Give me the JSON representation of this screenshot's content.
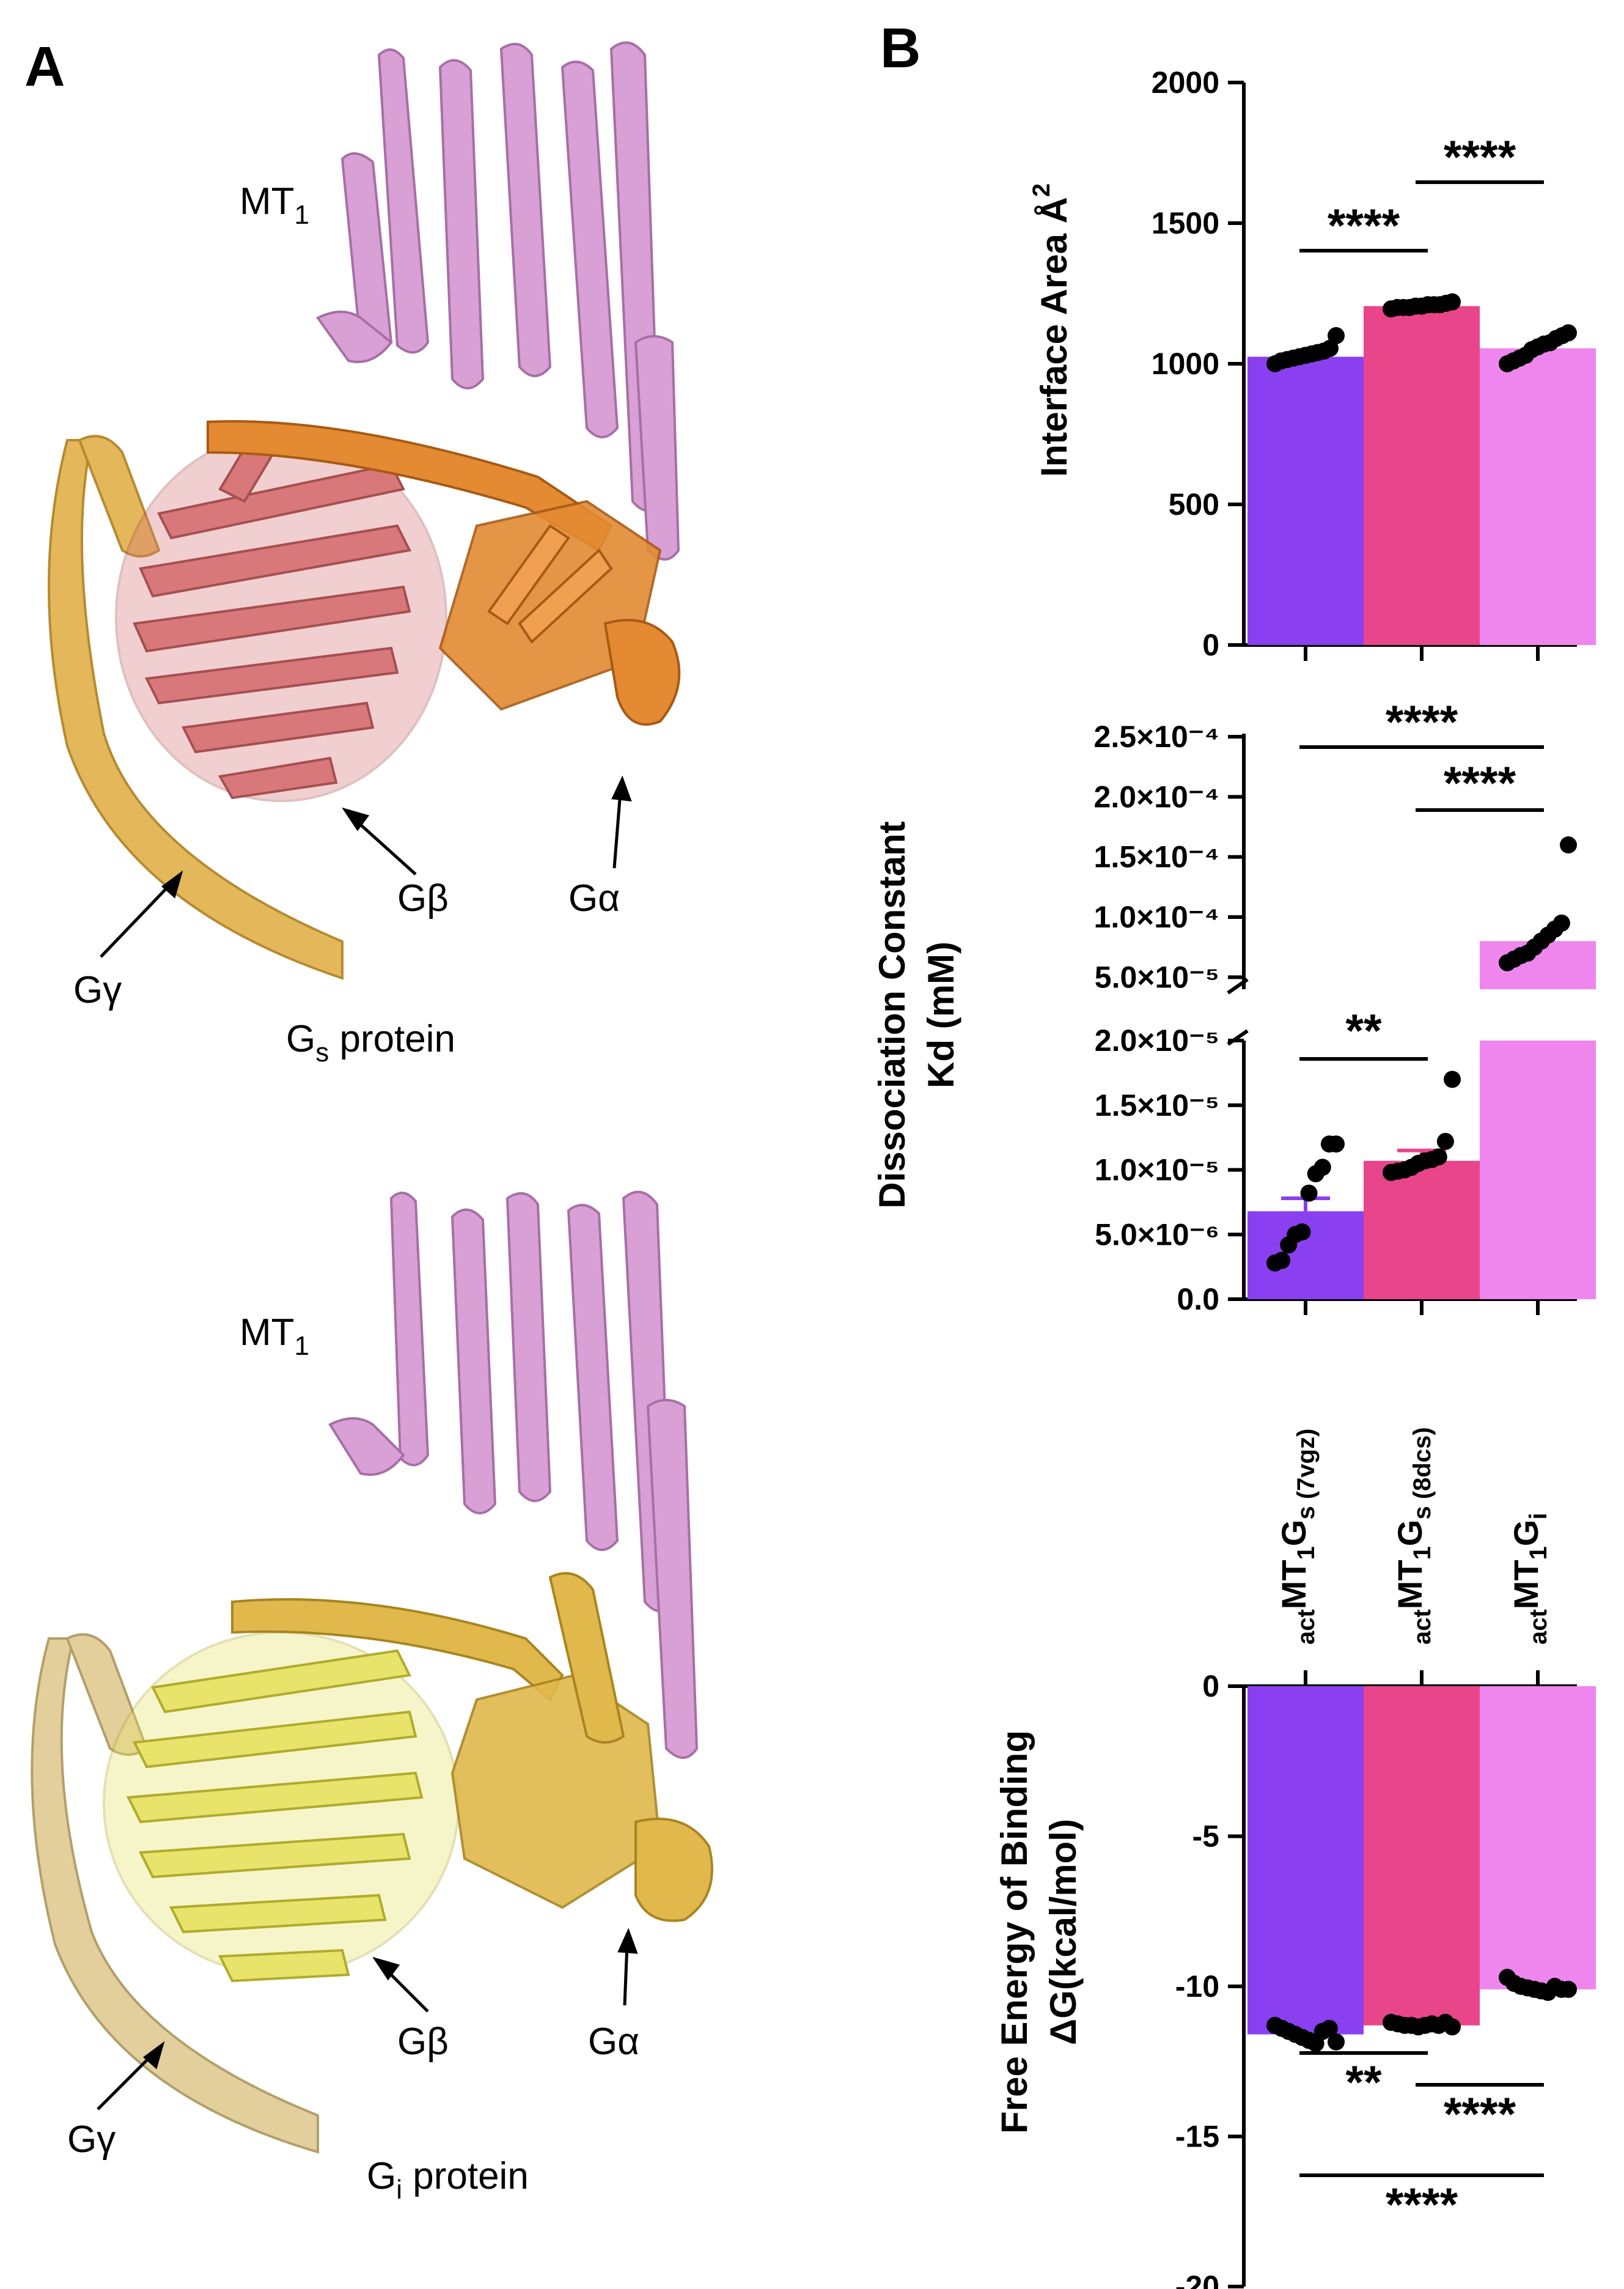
{
  "panels": {
    "a": {
      "letter": "A",
      "top": {
        "receptor_label": "MT",
        "receptor_sub": "1",
        "protein_label_main": "G",
        "protein_label_sub": "s",
        "protein_label_rest": " protein",
        "g_beta": "Gβ",
        "g_alpha": "Gα",
        "g_gamma": "Gγ"
      },
      "bottom": {
        "receptor_label": "MT",
        "receptor_sub": "1",
        "protein_label_main": "G",
        "protein_label_sub": "i",
        "protein_label_rest": " protein",
        "g_beta": "Gβ",
        "g_alpha": "Gα",
        "g_gamma": "Gγ"
      },
      "colors": {
        "receptor": "#d9a0d6",
        "gs_beta": "#d9787a",
        "gs_alpha": "#e38a32",
        "gs_gamma": "#e3b75a",
        "gi_beta": "#e8e36a",
        "gi_alpha": "#e0b84c",
        "gi_gamma": "#e2cf9c"
      }
    },
    "b": {
      "letter": "B"
    }
  },
  "chart_data": [
    {
      "type": "bar",
      "ylabel_main": "Interface Area Å",
      "ylabel_sup": "2",
      "categories": [
        "actMT1Gs (7vgz)",
        "actMT1Gs (8dcs)",
        "actMT1Gi"
      ],
      "values": [
        1025,
        1205,
        1055
      ],
      "ylim": [
        0,
        2000
      ],
      "yticks": [
        "0",
        "500",
        "1000",
        "1500",
        "2000"
      ],
      "ytick_values": [
        0,
        500,
        1000,
        1500,
        2000
      ],
      "colors": [
        "#8a3ff0",
        "#e8458a",
        "#ef86ee"
      ],
      "points": [
        [
          1000,
          1010,
          1015,
          1020,
          1025,
          1030,
          1035,
          1040,
          1045,
          1055,
          1100
        ],
        [
          1195,
          1200,
          1200,
          1200,
          1205,
          1205,
          1210,
          1210,
          1210,
          1215,
          1220
        ],
        [
          1000,
          1010,
          1020,
          1030,
          1050,
          1060,
          1070,
          1075,
          1090,
          1100,
          1110
        ]
      ],
      "significance": [
        {
          "from": 0,
          "to": 1,
          "label": "****"
        },
        {
          "from": 1,
          "to": 2,
          "label": "****"
        }
      ]
    },
    {
      "type": "bar",
      "ylabel_line1": "Dissociation Constant",
      "ylabel_line2": "Kd (mM)",
      "axis_break": true,
      "values": [
        6.8e-06,
        1.07e-05,
        8e-05
      ],
      "upper_yticks": [
        "2.5×10⁻⁴",
        "2.0×10⁻⁴",
        "1.5×10⁻⁴",
        "1.0×10⁻⁴",
        "5.0×10⁻⁵"
      ],
      "lower_yticks": [
        "2.0×10⁻⁵",
        "1.5×10⁻⁵",
        "1.0×10⁻⁵",
        "5.0×10⁻⁶",
        "0.0"
      ],
      "upper_ytick_values": [
        0.00025,
        0.0002,
        0.00015,
        0.0001,
        5e-05
      ],
      "lower_ytick_values": [
        2e-05,
        1.5e-05,
        1e-05,
        5e-06,
        0
      ],
      "upper_ylim": [
        4e-05,
        0.00025
      ],
      "lower_ylim": [
        0,
        2e-05
      ],
      "colors": [
        "#8a3ff0",
        "#e8458a",
        "#ef86ee"
      ],
      "error_upper": [
        7.8e-06,
        1.15e-05,
        null
      ],
      "points": [
        [
          2.8e-06,
          3e-06,
          4.2e-06,
          5e-06,
          5.2e-06,
          8.2e-06,
          9.7e-06,
          1.02e-05,
          1.2e-05,
          1.2e-05
        ],
        [
          9.8e-06,
          9.9e-06,
          1e-05,
          1.02e-05,
          1.05e-05,
          1.07e-05,
          1.08e-05,
          1.1e-05,
          1.22e-05,
          1.7e-05
        ],
        [
          6.2e-05,
          6.5e-05,
          6.8e-05,
          7e-05,
          7.5e-05,
          8e-05,
          8.5e-05,
          9e-05,
          9.5e-05,
          0.00016
        ]
      ],
      "significance": [
        {
          "from": 0,
          "to": 1,
          "label": "**"
        },
        {
          "from": 0,
          "to": 2,
          "label": "****"
        },
        {
          "from": 1,
          "to": 2,
          "label": "****"
        }
      ]
    },
    {
      "type": "bar",
      "ylabel_line1": "Free Energy of Binding",
      "ylabel_line2": "ΔG(kcal/mol)",
      "values": [
        -11.6,
        -11.3,
        -10.1
      ],
      "ylim": [
        -20,
        0
      ],
      "yticks": [
        "0",
        "-5",
        "-10",
        "-15",
        "-20"
      ],
      "ytick_values": [
        0,
        -5,
        -10,
        -15,
        -20
      ],
      "colors": [
        "#8a3ff0",
        "#e8458a",
        "#ef86ee"
      ],
      "points": [
        [
          -11.3,
          -11.4,
          -11.5,
          -11.6,
          -11.7,
          -11.8,
          -11.9,
          -11.5,
          -11.4,
          -11.85
        ],
        [
          -11.2,
          -11.25,
          -11.3,
          -11.3,
          -11.35,
          -11.3,
          -11.25,
          -11.3,
          -11.2,
          -11.35
        ],
        [
          -9.7,
          -9.9,
          -10.0,
          -10.05,
          -10.1,
          -10.15,
          -10.2,
          -10.0,
          -10.1,
          -10.1
        ]
      ],
      "significance": [
        {
          "from": 0,
          "to": 1,
          "label": "**"
        },
        {
          "from": 1,
          "to": 2,
          "label": "****"
        },
        {
          "from": 0,
          "to": 2,
          "label": "****"
        }
      ]
    }
  ],
  "x_categories": [
    {
      "prefix": "act",
      "main": "MT",
      "sub1": "1",
      "main2": "G",
      "sub2": "s",
      "tag": " (7vgz)"
    },
    {
      "prefix": "act",
      "main": "MT",
      "sub1": "1",
      "main2": "G",
      "sub2": "s",
      "tag": " (8dcs)"
    },
    {
      "prefix": "act",
      "main": "MT",
      "sub1": "1",
      "main2": "G",
      "sub2": "i",
      "tag": ""
    }
  ]
}
